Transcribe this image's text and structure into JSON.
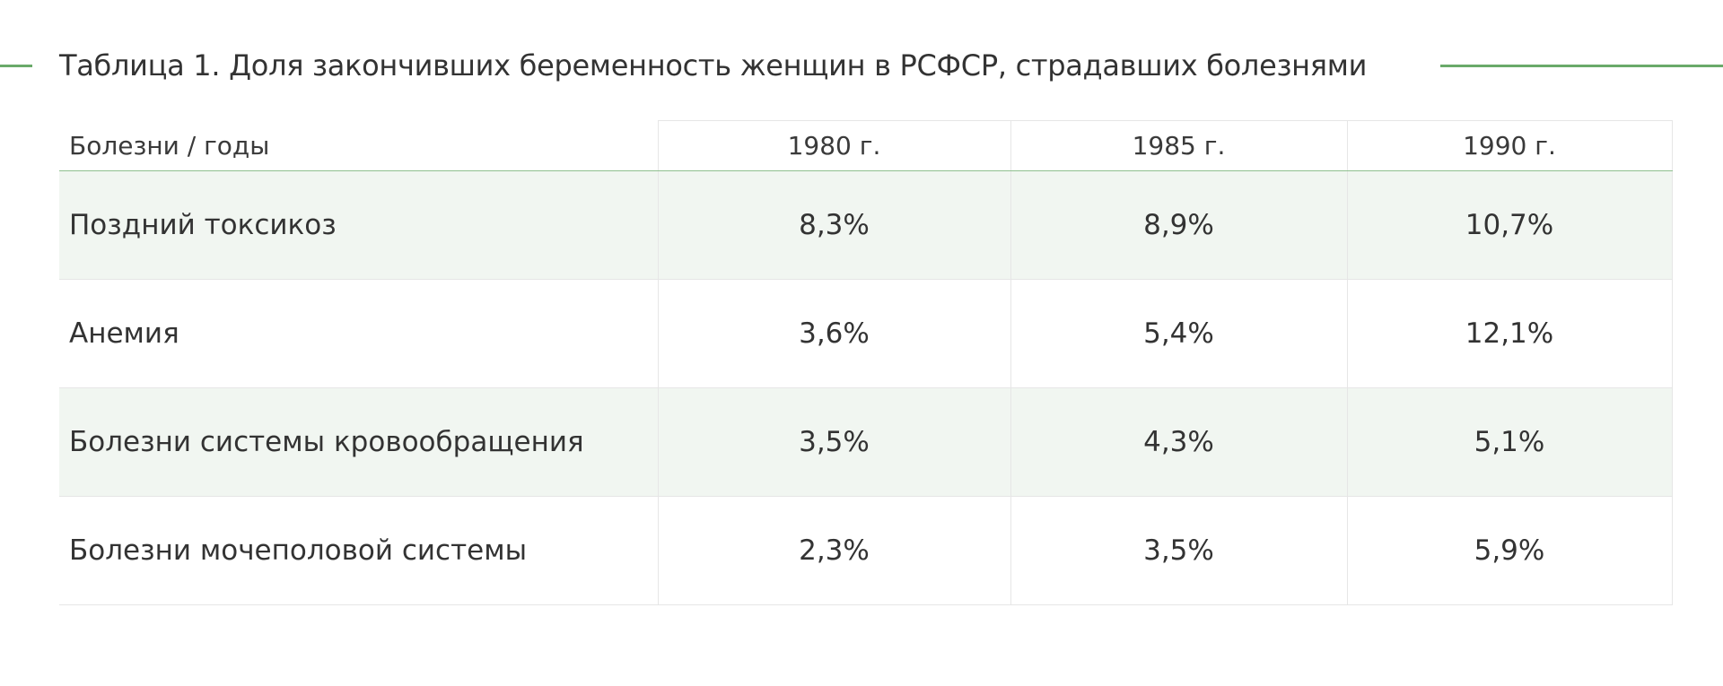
{
  "title": "Таблица 1. Доля закончивших беременность женщин в РСФСР, страдавших болезнями",
  "accent_color": "#6aaa6a",
  "row_shade_color": "#f1f6f1",
  "table": {
    "header": [
      "Болезни / годы",
      "1980 г.",
      "1985 г.",
      "1990 г."
    ],
    "rows": [
      {
        "label": "Поздний токсикоз",
        "values": [
          "8,3%",
          "8,9%",
          "10,7%"
        ]
      },
      {
        "label": "Анемия",
        "values": [
          "3,6%",
          "5,4%",
          "12,1%"
        ]
      },
      {
        "label": "Болезни системы кровообращения",
        "values": [
          "3,5%",
          "4,3%",
          "5,1%"
        ]
      },
      {
        "label": "Болезни мочеполовой системы",
        "values": [
          "2,3%",
          "3,5%",
          "5,9%"
        ]
      }
    ]
  }
}
